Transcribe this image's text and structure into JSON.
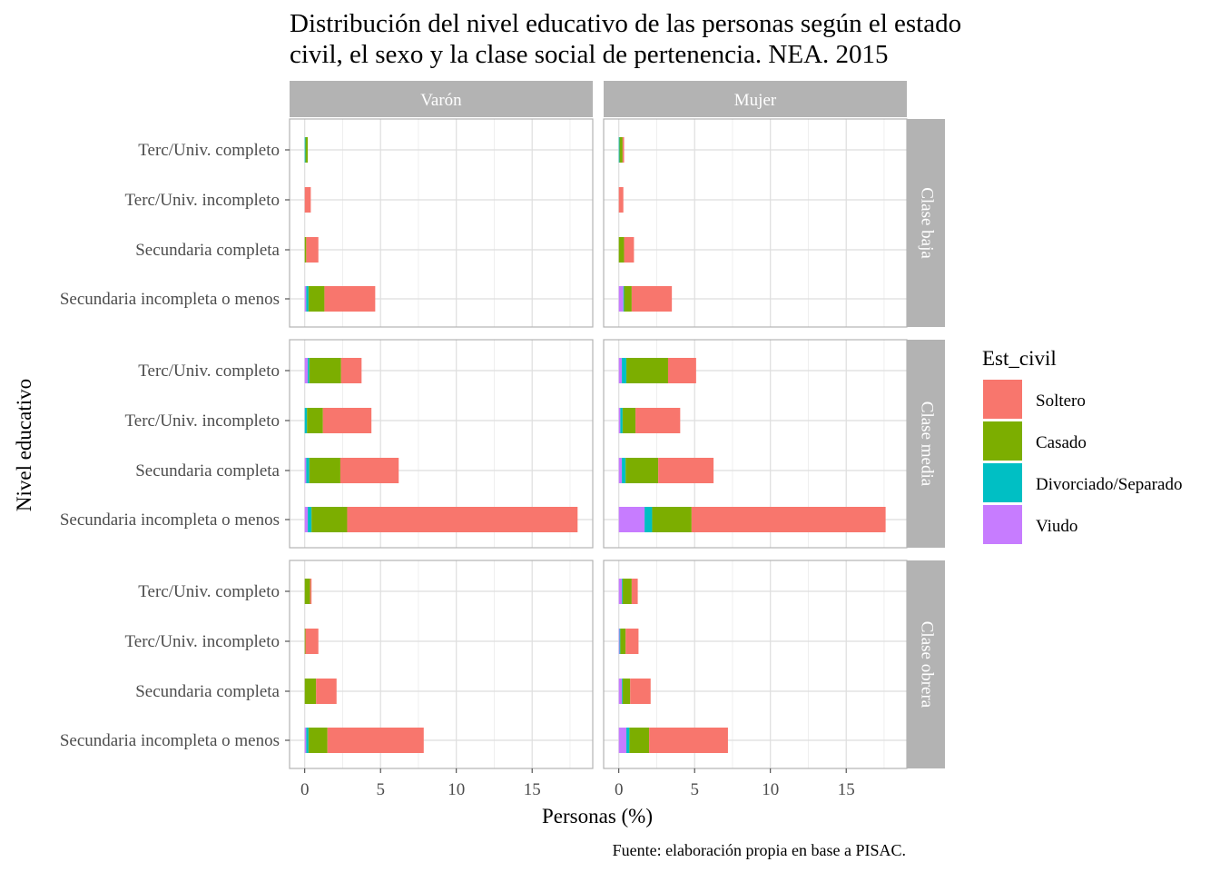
{
  "chart_data": {
    "type": "bar",
    "orientation": "horizontal",
    "stacked": true,
    "title": "Distribución del nivel educativo de las personas según el estado civil, el sexo y la clase social de pertenencia. NEA. 2015",
    "title_lines": [
      "Distribución del nivel educativo de las personas según el estado",
      "civil, el sexo y la clase social de pertenencia. NEA. 2015"
    ],
    "xlabel": "Personas (%)",
    "ylabel": "Nivel educativo",
    "caption": "Fuente: elaboración propia en base a PISAC.",
    "xlim": [
      -1,
      19
    ],
    "xticks": [
      0,
      5,
      10,
      15
    ],
    "grid": true,
    "legend": {
      "title": "Est_civil",
      "position": "right",
      "entries": [
        "Soltero",
        "Casado",
        "Divorciado/Separado",
        "Viudo"
      ]
    },
    "colors": {
      "Soltero": "#F8766D",
      "Casado": "#7CAE00",
      "Divorciado/Separado": "#00BFC4",
      "Viudo": "#C77CFF"
    },
    "stack_order": [
      "Viudo",
      "Divorciado/Separado",
      "Casado",
      "Soltero"
    ],
    "facet_cols": [
      "Varón",
      "Mujer"
    ],
    "facet_rows": [
      "Clase baja",
      "Clase media",
      "Clase obrera"
    ],
    "categories": [
      "Terc/Univ. completo",
      "Terc/Univ. incompleto",
      "Secundaria completa",
      "Secundaria incompleta o menos"
    ],
    "panels": [
      {
        "sexo": "Varón",
        "clase": "Clase baja",
        "values": {
          "Terc/Univ. completo": {
            "Viudo": 0,
            "Divorciado/Separado": 0.05,
            "Casado": 0.15,
            "Soltero": 0
          },
          "Terc/Univ. incompleto": {
            "Viudo": 0,
            "Divorciado/Separado": 0,
            "Casado": 0,
            "Soltero": 0.4
          },
          "Secundaria completa": {
            "Viudo": 0,
            "Divorciado/Separado": 0,
            "Casado": 0.1,
            "Soltero": 0.8
          },
          "Secundaria incompleta o menos": {
            "Viudo": 0.1,
            "Divorciado/Separado": 0.15,
            "Casado": 1.05,
            "Soltero": 3.35
          }
        }
      },
      {
        "sexo": "Mujer",
        "clase": "Clase baja",
        "values": {
          "Terc/Univ. completo": {
            "Viudo": 0,
            "Divorciado/Separado": 0.05,
            "Casado": 0.2,
            "Soltero": 0.1
          },
          "Terc/Univ. incompleto": {
            "Viudo": 0,
            "Divorciado/Separado": 0,
            "Casado": 0,
            "Soltero": 0.3
          },
          "Secundaria completa": {
            "Viudo": 0,
            "Divorciado/Separado": 0,
            "Casado": 0.35,
            "Soltero": 0.65
          },
          "Secundaria incompleta o menos": {
            "Viudo": 0.3,
            "Divorciado/Separado": 0.05,
            "Casado": 0.5,
            "Soltero": 2.65
          }
        }
      },
      {
        "sexo": "Varón",
        "clase": "Clase media",
        "values": {
          "Terc/Univ. completo": {
            "Viudo": 0.2,
            "Divorciado/Separado": 0.1,
            "Casado": 2.1,
            "Soltero": 1.35
          },
          "Terc/Univ. incompleto": {
            "Viudo": 0,
            "Divorciado/Separado": 0.15,
            "Casado": 1.05,
            "Soltero": 3.2
          },
          "Secundaria completa": {
            "Viudo": 0.1,
            "Divorciado/Separado": 0.2,
            "Casado": 2.05,
            "Soltero": 3.85
          },
          "Secundaria incompleta o menos": {
            "Viudo": 0.2,
            "Divorciado/Separado": 0.25,
            "Casado": 2.35,
            "Soltero": 15.2
          }
        }
      },
      {
        "sexo": "Mujer",
        "clase": "Clase media",
        "values": {
          "Terc/Univ. completo": {
            "Viudo": 0.2,
            "Divorciado/Separado": 0.3,
            "Casado": 2.75,
            "Soltero": 1.85
          },
          "Terc/Univ. incompleto": {
            "Viudo": 0.1,
            "Divorciado/Separado": 0.15,
            "Casado": 0.85,
            "Soltero": 2.95
          },
          "Secundaria completa": {
            "Viudo": 0.2,
            "Divorciado/Separado": 0.25,
            "Casado": 2.15,
            "Soltero": 3.65
          },
          "Secundaria incompleta o menos": {
            "Viudo": 1.7,
            "Divorciado/Separado": 0.5,
            "Casado": 2.6,
            "Soltero": 12.8
          }
        }
      },
      {
        "sexo": "Varón",
        "clase": "Clase obrera",
        "values": {
          "Terc/Univ. completo": {
            "Viudo": 0,
            "Divorciado/Separado": 0,
            "Casado": 0.35,
            "Soltero": 0.1
          },
          "Terc/Univ. incompleto": {
            "Viudo": 0,
            "Divorciado/Separado": 0,
            "Casado": 0.05,
            "Soltero": 0.85
          },
          "Secundaria completa": {
            "Viudo": 0,
            "Divorciado/Separado": 0,
            "Casado": 0.75,
            "Soltero": 1.35
          },
          "Secundaria incompleta o menos": {
            "Viudo": 0.1,
            "Divorciado/Separado": 0.15,
            "Casado": 1.25,
            "Soltero": 6.35
          }
        }
      },
      {
        "sexo": "Mujer",
        "clase": "Clase obrera",
        "values": {
          "Terc/Univ. completo": {
            "Viudo": 0.2,
            "Divorciado/Separado": 0.05,
            "Casado": 0.6,
            "Soltero": 0.4
          },
          "Terc/Univ. incompleto": {
            "Viudo": 0.05,
            "Divorciado/Separado": 0.05,
            "Casado": 0.35,
            "Soltero": 0.85
          },
          "Secundaria completa": {
            "Viudo": 0.2,
            "Divorciado/Separado": 0.05,
            "Casado": 0.5,
            "Soltero": 1.35
          },
          "Secundaria incompleta o menos": {
            "Viudo": 0.5,
            "Divorciado/Separado": 0.2,
            "Casado": 1.3,
            "Soltero": 5.2
          }
        }
      }
    ]
  }
}
